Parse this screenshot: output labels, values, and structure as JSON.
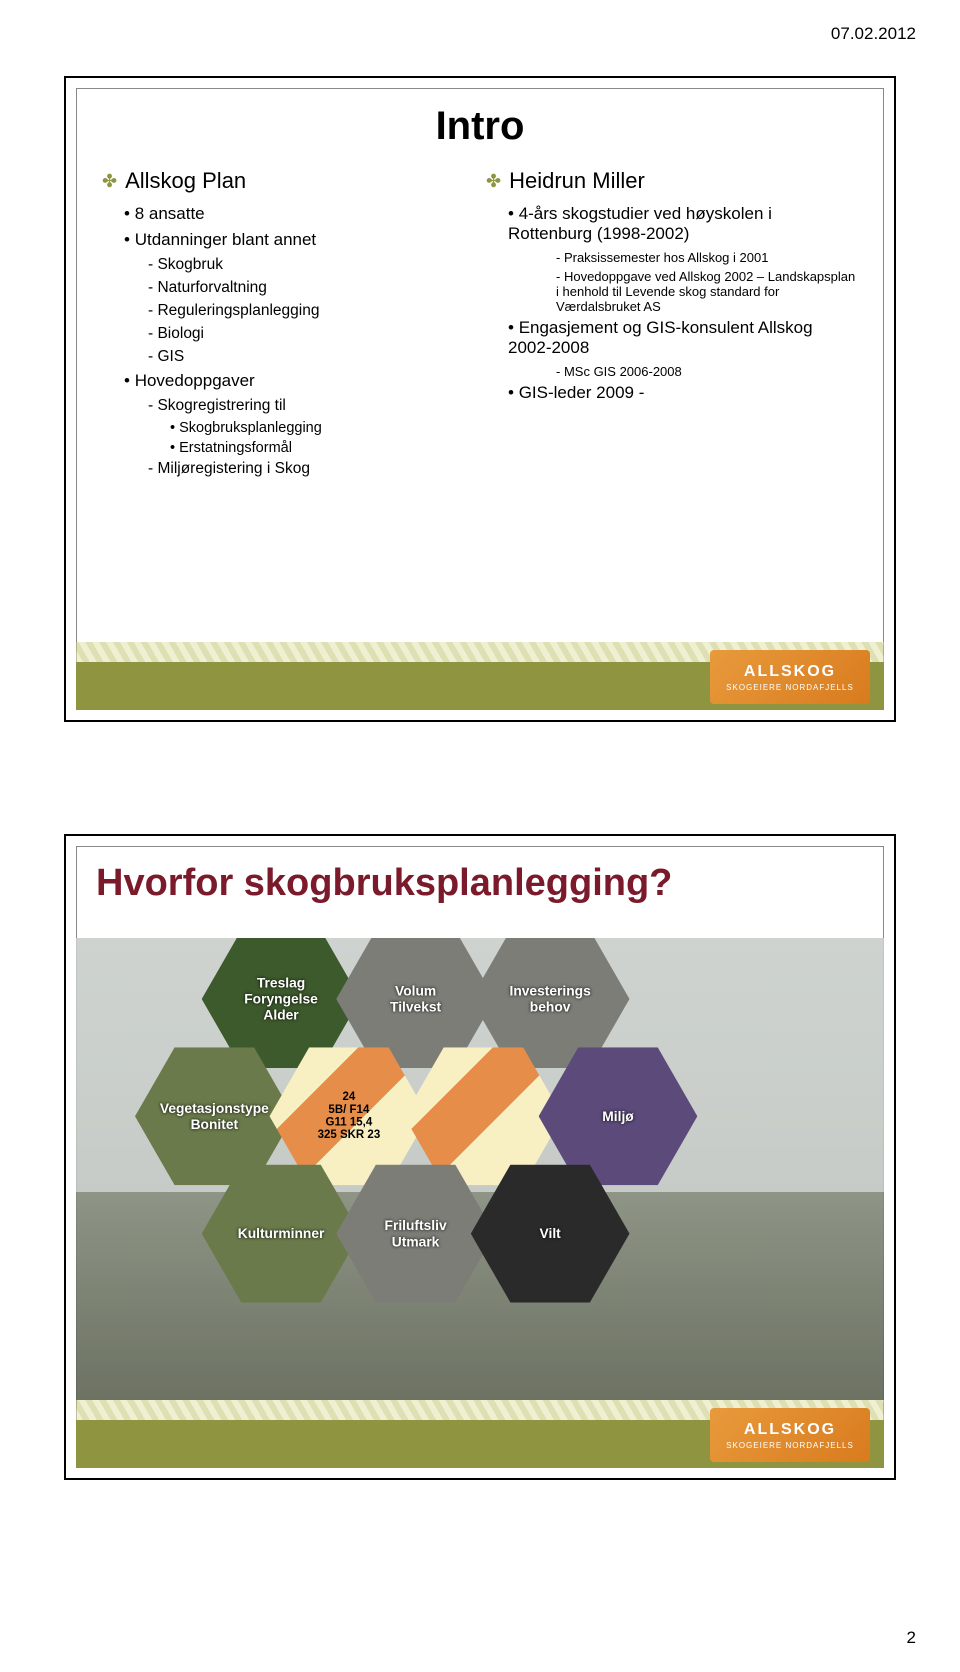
{
  "header": {
    "date": "07.02.2012",
    "page_number": "2"
  },
  "logo": {
    "line1": "ALLSKOG",
    "line2": "SKOGEIERE NORDAFJELLS"
  },
  "colors": {
    "olive": "#8e9440",
    "title_red": "#7a1a2b",
    "logo_orange": "#d87b1e",
    "black": "#000000",
    "white": "#ffffff"
  },
  "slide1": {
    "title": "Intro",
    "left": {
      "heading": "Allskog Plan",
      "items": [
        {
          "lvl": 1,
          "text": "8 ansatte"
        },
        {
          "lvl": 1,
          "text": "Utdanninger blant annet"
        },
        {
          "lvl": 2,
          "text": "Skogbruk"
        },
        {
          "lvl": 2,
          "text": "Naturforvaltning"
        },
        {
          "lvl": 2,
          "text": "Reguleringsplanlegging"
        },
        {
          "lvl": 2,
          "text": "Biologi"
        },
        {
          "lvl": 2,
          "text": "GIS"
        },
        {
          "lvl": 1,
          "text": "Hovedoppgaver"
        },
        {
          "lvl": 2,
          "text": "Skogregistrering til"
        },
        {
          "lvl": 3,
          "text": "Skogbruksplanlegging"
        },
        {
          "lvl": 3,
          "text": "Erstatningsformål"
        },
        {
          "lvl": 2,
          "text": "Miljøregistering i Skog"
        }
      ]
    },
    "right": {
      "heading": "Heidrun Miller",
      "items": [
        {
          "lvl": 1,
          "text": "4-års skogstudier ved høyskolen i Rottenburg (1998-2002)"
        },
        {
          "lvl": 4,
          "text": "Praksissemester hos Allskog i 2001"
        },
        {
          "lvl": 4,
          "text": "Hovedoppgave ved Allskog 2002 – Landskapsplan i henhold til Levende skog standard for Værdalsbruket AS"
        },
        {
          "lvl": 1,
          "text": "Engasjement og GIS-konsulent Allskog 2002-2008"
        },
        {
          "lvl": 4,
          "text": "MSc GIS 2006-2008"
        },
        {
          "lvl": 1,
          "text": "GIS-leder 2009 -"
        }
      ]
    }
  },
  "slide2": {
    "title": "Hvorfor skogbruksplanlegging?",
    "hexes": {
      "treslag": "Treslag\nForyngelse\nAlder",
      "volum": "Volum\nTilvekst",
      "invest": "Investerings\nbehov",
      "veget": "Vegetasjonstype\nBonitet",
      "map": "24\n5B/ F14\nG11  15,4\n325  SKR  23",
      "miljo": "Miljø",
      "kultur": "Kulturminner",
      "frilufts": "Friluftsliv\nUtmark",
      "vilt": "Vilt"
    }
  }
}
